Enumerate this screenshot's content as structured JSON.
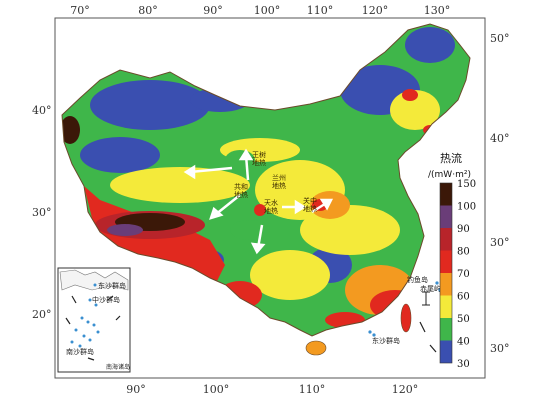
{
  "map": {
    "lon_ticks_top": [
      "70°",
      "80°",
      "90°",
      "100°",
      "110°",
      "120°",
      "130°"
    ],
    "lon_ticks_bottom": [
      "90°",
      "100°",
      "110°",
      "120°"
    ],
    "lat_ticks_left": [
      "40°",
      "30°",
      "20°"
    ],
    "lat_ticks_right": [
      "50°",
      "40°",
      "30°",
      "30°"
    ],
    "legend": {
      "title": "热流",
      "unit": "/(mW·m²)",
      "stops": [
        {
          "value": "150",
          "color": "#3b1808"
        },
        {
          "value": "100",
          "color": "#6a3d78"
        },
        {
          "value": "90",
          "color": "#b8242a"
        },
        {
          "value": "80",
          "color": "#e1291f"
        },
        {
          "value": "70",
          "color": "#f39a20"
        },
        {
          "value": "60",
          "color": "#f4ea3a"
        },
        {
          "value": "50",
          "color": "#3fb64a"
        },
        {
          "value": "40",
          "color": "#3a4fb0"
        },
        {
          "value": "30",
          "color": "#3a4fb0"
        }
      ]
    },
    "annotations": [
      {
        "label": "王树地热",
        "line1": "王树",
        "line2": "地热"
      },
      {
        "label": "共和地热",
        "line1": "共和",
        "line2": "地热"
      },
      {
        "label": "天水地热",
        "line1": "天水",
        "line2": "地热"
      },
      {
        "label": "关中地热",
        "line1": "关中",
        "line2": "地热"
      },
      {
        "label": "兰州地热",
        "line1": "兰州",
        "line2": "地热"
      }
    ],
    "islands": {
      "diaoyu": "钓鱼岛",
      "chiwei": "赤尾屿",
      "dongsha": "东沙群岛",
      "inset_dongsha": "东沙群岛",
      "inset_zhongsha": "中沙群岛",
      "inset_nansha": "南沙群岛",
      "inset_corner": "南海诸岛"
    }
  }
}
